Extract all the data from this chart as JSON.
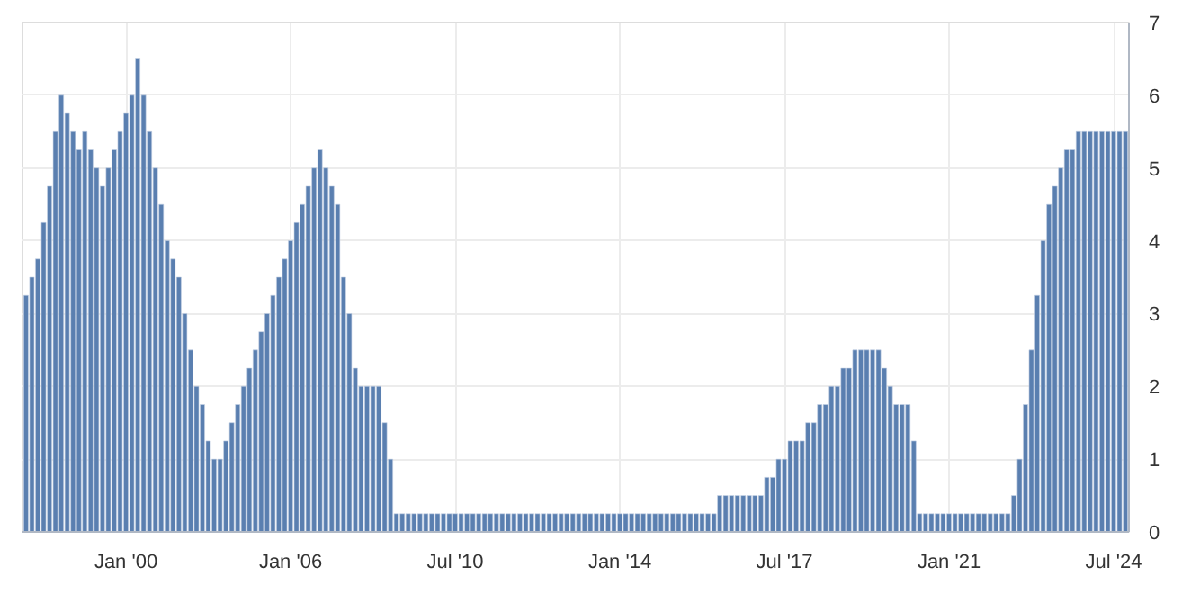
{
  "chart_data": {
    "type": "bar",
    "color": "#5a7fb0",
    "categories": [
      null,
      null,
      null,
      null,
      null,
      null,
      null,
      null,
      null,
      null,
      null,
      null,
      null,
      null,
      null,
      null,
      null,
      "Jan '00",
      null,
      null,
      null,
      null,
      null,
      null,
      null,
      null,
      null,
      null,
      null,
      null,
      null,
      null,
      null,
      null,
      null,
      null,
      null,
      null,
      null,
      null,
      null,
      null,
      null,
      null,
      null,
      "Jan '06",
      null,
      null,
      null,
      null,
      null,
      null,
      null,
      null,
      null,
      null,
      null,
      null,
      null,
      null,
      null,
      null,
      null,
      null,
      null,
      null,
      null,
      null,
      null,
      null,
      null,
      null,
      null,
      "Jul '10",
      null,
      null,
      null,
      null,
      null,
      null,
      null,
      null,
      null,
      null,
      null,
      null,
      null,
      null,
      null,
      null,
      null,
      null,
      null,
      null,
      null,
      null,
      null,
      null,
      null,
      null,
      null,
      "Jan '14",
      null,
      null,
      null,
      null,
      null,
      null,
      null,
      null,
      null,
      null,
      null,
      null,
      null,
      null,
      null,
      null,
      null,
      null,
      null,
      null,
      null,
      null,
      null,
      null,
      null,
      null,
      null,
      "Jul '17",
      null,
      null,
      null,
      null,
      null,
      null,
      null,
      null,
      null,
      null,
      null,
      null,
      null,
      null,
      null,
      null,
      null,
      null,
      null,
      null,
      null,
      null,
      null,
      null,
      null,
      null,
      null,
      "Jan '21",
      null,
      null,
      null,
      null,
      null,
      null,
      null,
      null,
      null,
      null,
      null,
      null,
      null,
      null,
      null,
      null,
      null,
      null,
      null,
      null,
      null,
      null,
      null,
      null,
      null,
      null,
      null,
      "Jul '24",
      null,
      null
    ],
    "values": [
      3.25,
      3.5,
      3.75,
      4.25,
      4.75,
      5.5,
      6.0,
      5.75,
      5.5,
      5.25,
      5.5,
      5.25,
      5.0,
      4.75,
      5.0,
      5.25,
      5.5,
      5.75,
      6.0,
      6.5,
      6.0,
      5.5,
      5.0,
      4.5,
      4.0,
      3.75,
      3.5,
      3.0,
      2.5,
      2.0,
      1.75,
      1.25,
      1.0,
      1.0,
      1.25,
      1.5,
      1.75,
      2.0,
      2.25,
      2.5,
      2.75,
      3.0,
      3.25,
      3.5,
      3.75,
      4.0,
      4.25,
      4.5,
      4.75,
      5.0,
      5.25,
      5.0,
      4.75,
      4.5,
      3.5,
      3.0,
      2.25,
      2.0,
      2.0,
      2.0,
      2.0,
      1.5,
      1.0,
      0.25,
      0.25,
      0.25,
      0.25,
      0.25,
      0.25,
      0.25,
      0.25,
      0.25,
      0.25,
      0.25,
      0.25,
      0.25,
      0.25,
      0.25,
      0.25,
      0.25,
      0.25,
      0.25,
      0.25,
      0.25,
      0.25,
      0.25,
      0.25,
      0.25,
      0.25,
      0.25,
      0.25,
      0.25,
      0.25,
      0.25,
      0.25,
      0.25,
      0.25,
      0.25,
      0.25,
      0.25,
      0.25,
      0.25,
      0.25,
      0.25,
      0.25,
      0.25,
      0.25,
      0.25,
      0.25,
      0.25,
      0.25,
      0.25,
      0.25,
      0.25,
      0.25,
      0.25,
      0.25,
      0.25,
      0.5,
      0.5,
      0.5,
      0.5,
      0.5,
      0.5,
      0.5,
      0.5,
      0.75,
      0.75,
      1.0,
      1.0,
      1.25,
      1.25,
      1.25,
      1.5,
      1.5,
      1.75,
      1.75,
      2.0,
      2.0,
      2.25,
      2.25,
      2.5,
      2.5,
      2.5,
      2.5,
      2.5,
      2.25,
      2.0,
      1.75,
      1.75,
      1.75,
      1.25,
      0.25,
      0.25,
      0.25,
      0.25,
      0.25,
      0.25,
      0.25,
      0.25,
      0.25,
      0.25,
      0.25,
      0.25,
      0.25,
      0.25,
      0.25,
      0.25,
      0.5,
      1.0,
      1.75,
      2.5,
      3.25,
      4.0,
      4.5,
      4.75,
      5.0,
      5.25,
      5.25,
      5.5,
      5.5,
      5.5,
      5.5,
      5.5,
      5.5,
      5.5,
      5.5,
      5.5
    ],
    "ylim": [
      0,
      7
    ],
    "yticks": [
      0,
      1,
      2,
      3,
      4,
      5,
      6,
      7
    ],
    "grid": true
  }
}
